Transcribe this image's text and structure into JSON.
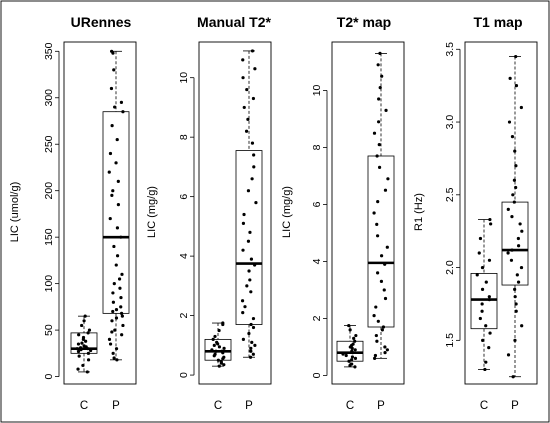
{
  "figure": {
    "panels": [
      {
        "title": "URennes",
        "ylabel": "LIC (umol/g)",
        "ylim": [
          -8,
          360
        ],
        "ticks": [
          0,
          50,
          100,
          150,
          200,
          250,
          300,
          350
        ],
        "tick_labels": [
          "0",
          "50",
          "100",
          "150",
          "200",
          "250",
          "300",
          "350"
        ]
      },
      {
        "title": "Manual T2*",
        "ylabel": "LIC (mg/g)",
        "ylim": [
          -0.3,
          11.2
        ],
        "ticks": [
          0,
          2,
          4,
          6,
          8,
          10
        ],
        "tick_labels": [
          "0",
          "2",
          "4",
          "6",
          "8",
          "10"
        ]
      },
      {
        "title": "T2* map",
        "ylabel": "LIC (mg/g)",
        "ylim": [
          -0.3,
          11.7
        ],
        "ticks": [
          0,
          2,
          4,
          6,
          8,
          10
        ],
        "tick_labels": [
          "0",
          "2",
          "4",
          "6",
          "8",
          "10"
        ]
      },
      {
        "title": "T1 map",
        "ylabel": "R1 (Hz)",
        "ylim": [
          1.2,
          3.55
        ],
        "ticks": [
          1.5,
          2.0,
          2.5,
          3.0,
          3.5
        ],
        "tick_labels": [
          "1.5",
          "2.0",
          "2.5",
          "3.0",
          "3.5"
        ]
      }
    ]
  },
  "chart_data": [
    {
      "type": "box",
      "title": "URennes",
      "ylabel": "LIC (umol/g)",
      "categories": [
        "C",
        "P"
      ],
      "ylim": [
        -8,
        360
      ],
      "boxes": [
        {
          "category": "C",
          "min": 5,
          "q1": 25,
          "median": 30,
          "q3": 47,
          "max": 65
        },
        {
          "category": "P",
          "min": 18,
          "q1": 68,
          "median": 150,
          "q3": 285,
          "max": 350
        }
      ],
      "points": [
        {
          "category": "C",
          "values": [
            5,
            8,
            12,
            18,
            22,
            25,
            27,
            28,
            29,
            30,
            30,
            31,
            32,
            33,
            35,
            36,
            38,
            40,
            42,
            45,
            47,
            50,
            55,
            60,
            65
          ]
        },
        {
          "category": "P",
          "values": [
            18,
            20,
            25,
            30,
            35,
            40,
            45,
            48,
            50,
            55,
            60,
            63,
            65,
            68,
            70,
            72,
            75,
            80,
            85,
            90,
            95,
            100,
            105,
            110,
            120,
            130,
            140,
            150,
            160,
            170,
            185,
            195,
            200,
            210,
            220,
            230,
            240,
            255,
            270,
            285,
            290,
            295,
            310,
            330,
            348,
            350
          ]
        }
      ]
    },
    {
      "type": "box",
      "title": "Manual T2*",
      "ylabel": "LIC (mg/g)",
      "categories": [
        "C",
        "P"
      ],
      "ylim": [
        -0.3,
        11.2
      ],
      "boxes": [
        {
          "category": "C",
          "min": 0.3,
          "q1": 0.5,
          "median": 0.8,
          "q3": 1.2,
          "max": 1.75
        },
        {
          "category": "P",
          "min": 0.6,
          "q1": 1.7,
          "median": 3.75,
          "q3": 7.55,
          "max": 10.9
        }
      ],
      "points": [
        {
          "category": "C",
          "values": [
            0.3,
            0.35,
            0.4,
            0.45,
            0.5,
            0.55,
            0.6,
            0.65,
            0.7,
            0.75,
            0.8,
            0.8,
            0.85,
            0.9,
            0.95,
            1.0,
            1.05,
            1.1,
            1.2,
            1.3,
            1.5,
            1.7,
            1.75
          ]
        },
        {
          "category": "P",
          "values": [
            0.6,
            0.7,
            0.8,
            0.9,
            1.0,
            1.1,
            1.2,
            1.4,
            1.6,
            1.7,
            1.9,
            2.1,
            2.3,
            2.5,
            2.8,
            3.0,
            3.2,
            3.5,
            3.7,
            3.9,
            4.2,
            4.5,
            4.8,
            5.1,
            5.4,
            5.8,
            6.2,
            6.6,
            7.0,
            7.4,
            7.8,
            8.2,
            8.6,
            9.0,
            9.3,
            9.6,
            10.0,
            10.3,
            10.6,
            10.9
          ]
        }
      ]
    },
    {
      "type": "box",
      "title": "T2* map",
      "ylabel": "LIC (mg/g)",
      "categories": [
        "C",
        "P"
      ],
      "ylim": [
        -0.3,
        11.7
      ],
      "boxes": [
        {
          "category": "C",
          "min": 0.3,
          "q1": 0.5,
          "median": 0.8,
          "q3": 1.2,
          "max": 1.75
        },
        {
          "category": "P",
          "min": 0.6,
          "q1": 1.7,
          "median": 3.95,
          "q3": 7.7,
          "max": 11.3
        }
      ],
      "points": [
        {
          "category": "C",
          "values": [
            0.3,
            0.35,
            0.4,
            0.5,
            0.55,
            0.6,
            0.65,
            0.7,
            0.75,
            0.8,
            0.85,
            0.9,
            0.95,
            1.0,
            1.05,
            1.1,
            1.2,
            1.3,
            1.4,
            1.6,
            1.75
          ]
        },
        {
          "category": "P",
          "values": [
            0.6,
            0.7,
            0.8,
            0.9,
            1.0,
            1.2,
            1.4,
            1.6,
            1.7,
            1.9,
            2.1,
            2.4,
            2.7,
            3.0,
            3.3,
            3.6,
            3.9,
            4.2,
            4.5,
            4.9,
            5.3,
            5.7,
            6.1,
            6.5,
            6.9,
            7.3,
            7.7,
            8.1,
            8.5,
            8.9,
            9.3,
            9.7,
            10.1,
            10.5,
            10.9,
            11.3
          ]
        }
      ]
    },
    {
      "type": "box",
      "title": "T1 map",
      "ylabel": "R1 (Hz)",
      "categories": [
        "C",
        "P"
      ],
      "ylim": [
        1.2,
        3.55
      ],
      "boxes": [
        {
          "category": "C",
          "min": 1.3,
          "q1": 1.58,
          "median": 1.78,
          "q3": 1.96,
          "max": 2.33
        },
        {
          "category": "P",
          "min": 1.25,
          "q1": 1.88,
          "median": 2.12,
          "q3": 2.45,
          "max": 3.45
        }
      ],
      "points": [
        {
          "category": "C",
          "values": [
            1.3,
            1.35,
            1.45,
            1.5,
            1.55,
            1.6,
            1.65,
            1.7,
            1.75,
            1.78,
            1.8,
            1.85,
            1.9,
            1.95,
            2.0,
            2.05,
            2.1,
            2.2,
            2.3,
            2.33
          ]
        },
        {
          "category": "P",
          "values": [
            1.25,
            1.4,
            1.5,
            1.6,
            1.7,
            1.75,
            1.8,
            1.85,
            1.9,
            1.95,
            2.0,
            2.05,
            2.1,
            2.12,
            2.15,
            2.2,
            2.25,
            2.3,
            2.35,
            2.4,
            2.45,
            2.5,
            2.55,
            2.6,
            2.7,
            2.8,
            2.9,
            3.0,
            3.1,
            3.25,
            3.3,
            3.45
          ]
        }
      ]
    }
  ]
}
